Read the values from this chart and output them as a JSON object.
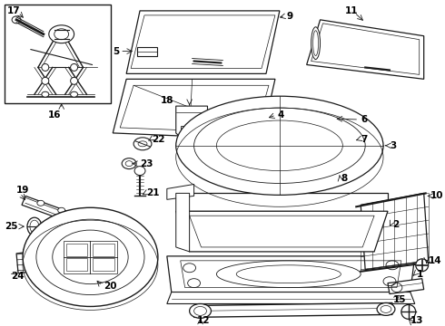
{
  "background_color": "#ffffff",
  "line_color": "#1a1a1a",
  "label_color": "#000000",
  "fig_width": 4.9,
  "fig_height": 3.6,
  "dpi": 100,
  "label_fontsize": 7.5
}
